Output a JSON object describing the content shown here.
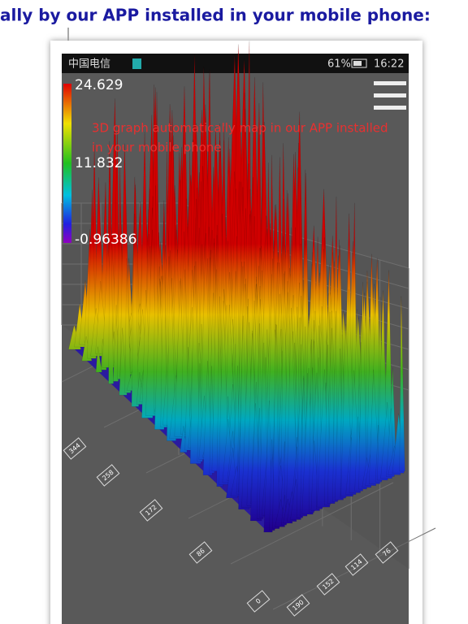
{
  "header": {
    "text": "ally by our APP installed in your mobile phone:"
  },
  "status_bar": {
    "carrier": "中国电信",
    "battery": "61%",
    "time": "16:22"
  },
  "colorbar": {
    "max": "24.629",
    "mid": "11.832",
    "min": "-0.96386"
  },
  "annotation": {
    "lines": [
      "3D graph automatically map in our APP installed",
      "in your mobile phone"
    ]
  },
  "axis_labels": {
    "left": [
      "344",
      "258",
      "172",
      "86",
      "0"
    ],
    "right": [
      "190",
      "152",
      "114",
      "76"
    ]
  }
}
